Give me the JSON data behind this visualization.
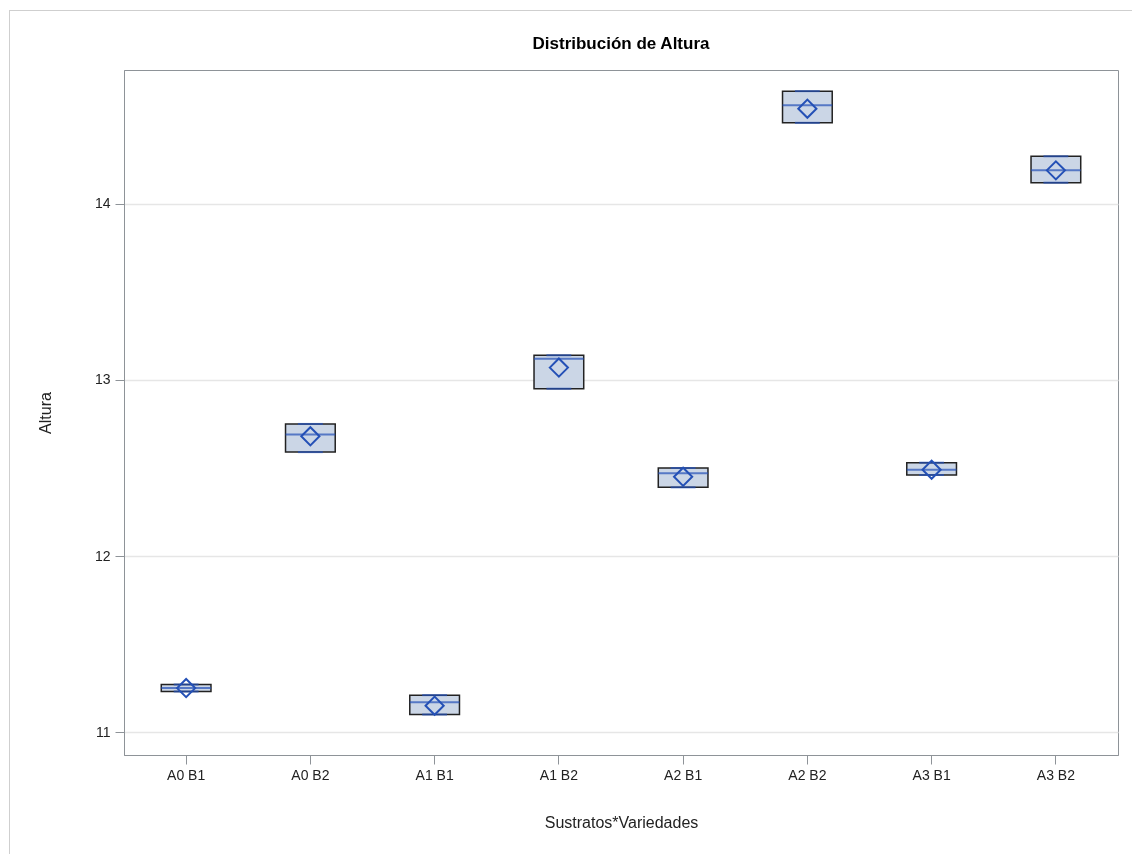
{
  "chart_data": {
    "type": "box",
    "title": "Distribución de Altura",
    "xlabel": "Sustratos*Variedades",
    "ylabel": "Altura",
    "categories": [
      "A0 B1",
      "A0 B2",
      "A1 B1",
      "A1 B2",
      "A2 B1",
      "A2 B2",
      "A3 B1",
      "A3 B2"
    ],
    "series": [
      {
        "color": "#cbd6e6",
        "boxes": [
          {
            "low": 11.23,
            "q1": 11.23,
            "median": 11.25,
            "q3": 11.27,
            "high": 11.27,
            "mean": 11.25
          },
          {
            "low": 12.59,
            "q1": 12.59,
            "median": 12.69,
            "q3": 12.75,
            "high": 12.75,
            "mean": 12.68
          },
          {
            "low": 11.1,
            "q1": 11.1,
            "median": 11.17,
            "q3": 11.21,
            "high": 11.21,
            "mean": 11.15
          },
          {
            "low": 12.95,
            "q1": 12.95,
            "median": 13.12,
            "q3": 13.14,
            "high": 13.14,
            "mean": 13.07
          },
          {
            "low": 12.39,
            "q1": 12.39,
            "median": 12.47,
            "q3": 12.5,
            "high": 12.5,
            "mean": 12.45
          },
          {
            "low": 14.46,
            "q1": 14.46,
            "median": 14.56,
            "q3": 14.64,
            "high": 14.64,
            "mean": 14.54
          },
          {
            "low": 12.46,
            "q1": 12.46,
            "median": 12.49,
            "q3": 12.53,
            "high": 12.53,
            "mean": 12.49
          },
          {
            "low": 14.12,
            "q1": 14.12,
            "median": 14.19,
            "q3": 14.27,
            "high": 14.27,
            "mean": 14.19
          }
        ]
      }
    ],
    "ylim": [
      10.87,
      14.76
    ],
    "yticks": [
      11,
      12,
      13,
      14
    ],
    "grid": "y",
    "marker": "diamond"
  }
}
